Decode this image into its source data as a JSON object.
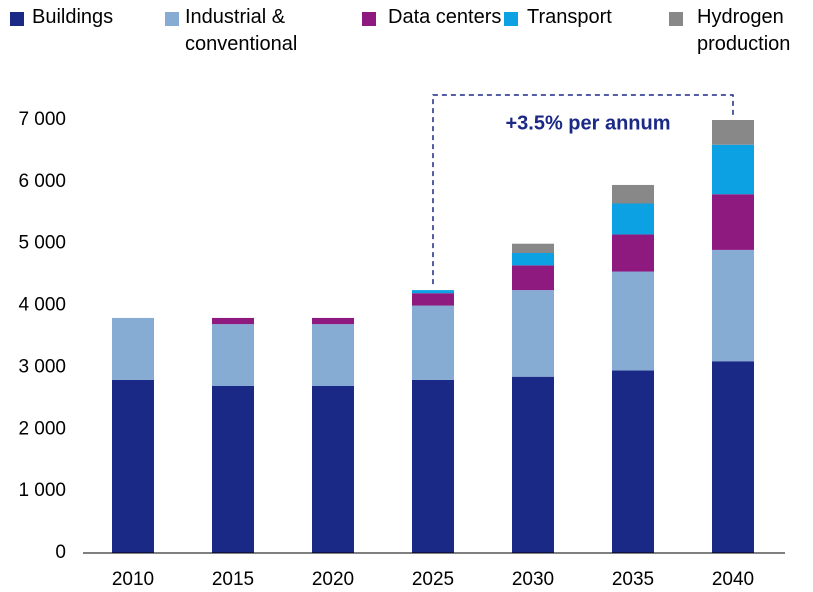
{
  "chart_data": {
    "type": "stacked_bar",
    "categories": [
      "2010",
      "2015",
      "2020",
      "2025",
      "2030",
      "2035",
      "2040"
    ],
    "series": [
      {
        "name": "Buildings",
        "color": "#1a2886",
        "values": [
          2800,
          2700,
          2700,
          2800,
          2850,
          2950,
          3100
        ]
      },
      {
        "name": "Industrial & conventional",
        "color": "#86acd3",
        "values": [
          1000,
          1000,
          1000,
          1200,
          1400,
          1600,
          1800
        ]
      },
      {
        "name": "Data centers",
        "color": "#8e1a7f",
        "values": [
          0,
          100,
          100,
          200,
          400,
          600,
          900
        ]
      },
      {
        "name": "Transport",
        "color": "#0ba1e2",
        "values": [
          0,
          0,
          0,
          50,
          200,
          500,
          800
        ]
      },
      {
        "name": "Hydrogen production",
        "color": "#888888",
        "values": [
          0,
          0,
          0,
          0,
          150,
          300,
          400
        ]
      }
    ],
    "ylim": [
      0,
      7000
    ],
    "yticks": [
      0,
      {
        "value": 1000,
        "label": "1 000"
      },
      {
        "value": 2000,
        "label": "2 000"
      },
      {
        "value": 3000,
        "label": "3 000"
      },
      {
        "value": 4000,
        "label": "4 000"
      },
      {
        "value": 5000,
        "label": "5 000"
      },
      {
        "value": 6000,
        "label": "6 000"
      },
      {
        "value": 7000,
        "label": "7 000"
      }
    ],
    "annotation": "+3.5% per annum",
    "legend": "top"
  }
}
